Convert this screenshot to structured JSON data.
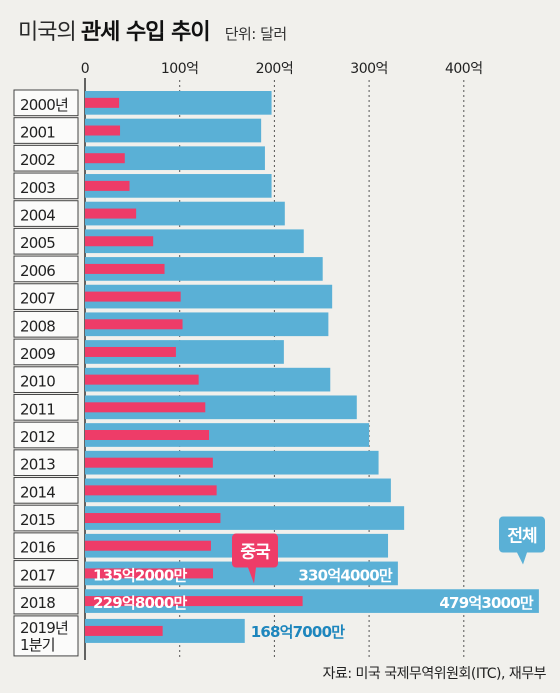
{
  "title_light": "미국의",
  "title_bold": "관세 수입 추이",
  "unit": "단위: 달러",
  "source": "자료: 미국 국제무역위원회(ITC), 재무부",
  "colors": {
    "total": "#5ab0d6",
    "china": "#ee3c68",
    "text_total": "#1e86bd",
    "axis": "#333333",
    "bg": "#f1f0ec"
  },
  "chart_data": {
    "type": "bar",
    "orientation": "horizontal",
    "x_ticks": [
      0,
      100,
      200,
      300,
      400
    ],
    "x_tick_labels": [
      "0",
      "100억",
      "200억",
      "300억",
      "400억"
    ],
    "xlim": [
      0,
      480
    ],
    "categories": [
      "2000년",
      "2001",
      "2002",
      "2003",
      "2004",
      "2005",
      "2006",
      "2007",
      "2008",
      "2009",
      "2010",
      "2011",
      "2012",
      "2013",
      "2014",
      "2015",
      "2016",
      "2017",
      "2018",
      "2019년\n1분기"
    ],
    "series": [
      {
        "name": "전체",
        "values": [
          197,
          186,
          190,
          197,
          211,
          231,
          251,
          261,
          257,
          210,
          259,
          287,
          300,
          310,
          323,
          337,
          320,
          330.4,
          479.3,
          168.7
        ]
      },
      {
        "name": "중국",
        "values": [
          36,
          37,
          42,
          47,
          54,
          72,
          84,
          101,
          103,
          96,
          120,
          127,
          131,
          135,
          139,
          143,
          133,
          135.2,
          229.8,
          82
        ]
      }
    ],
    "data_labels": [
      {
        "category": "2017",
        "series": "중국",
        "text": "135억2000만"
      },
      {
        "category": "2017",
        "series": "전체",
        "text": "330억4000만"
      },
      {
        "category": "2018",
        "series": "중국",
        "text": "229억8000만"
      },
      {
        "category": "2018",
        "series": "전체",
        "text": "479억3000만"
      },
      {
        "category": "2019년\n1분기",
        "series": "전체",
        "text": "168억7000만"
      }
    ]
  }
}
